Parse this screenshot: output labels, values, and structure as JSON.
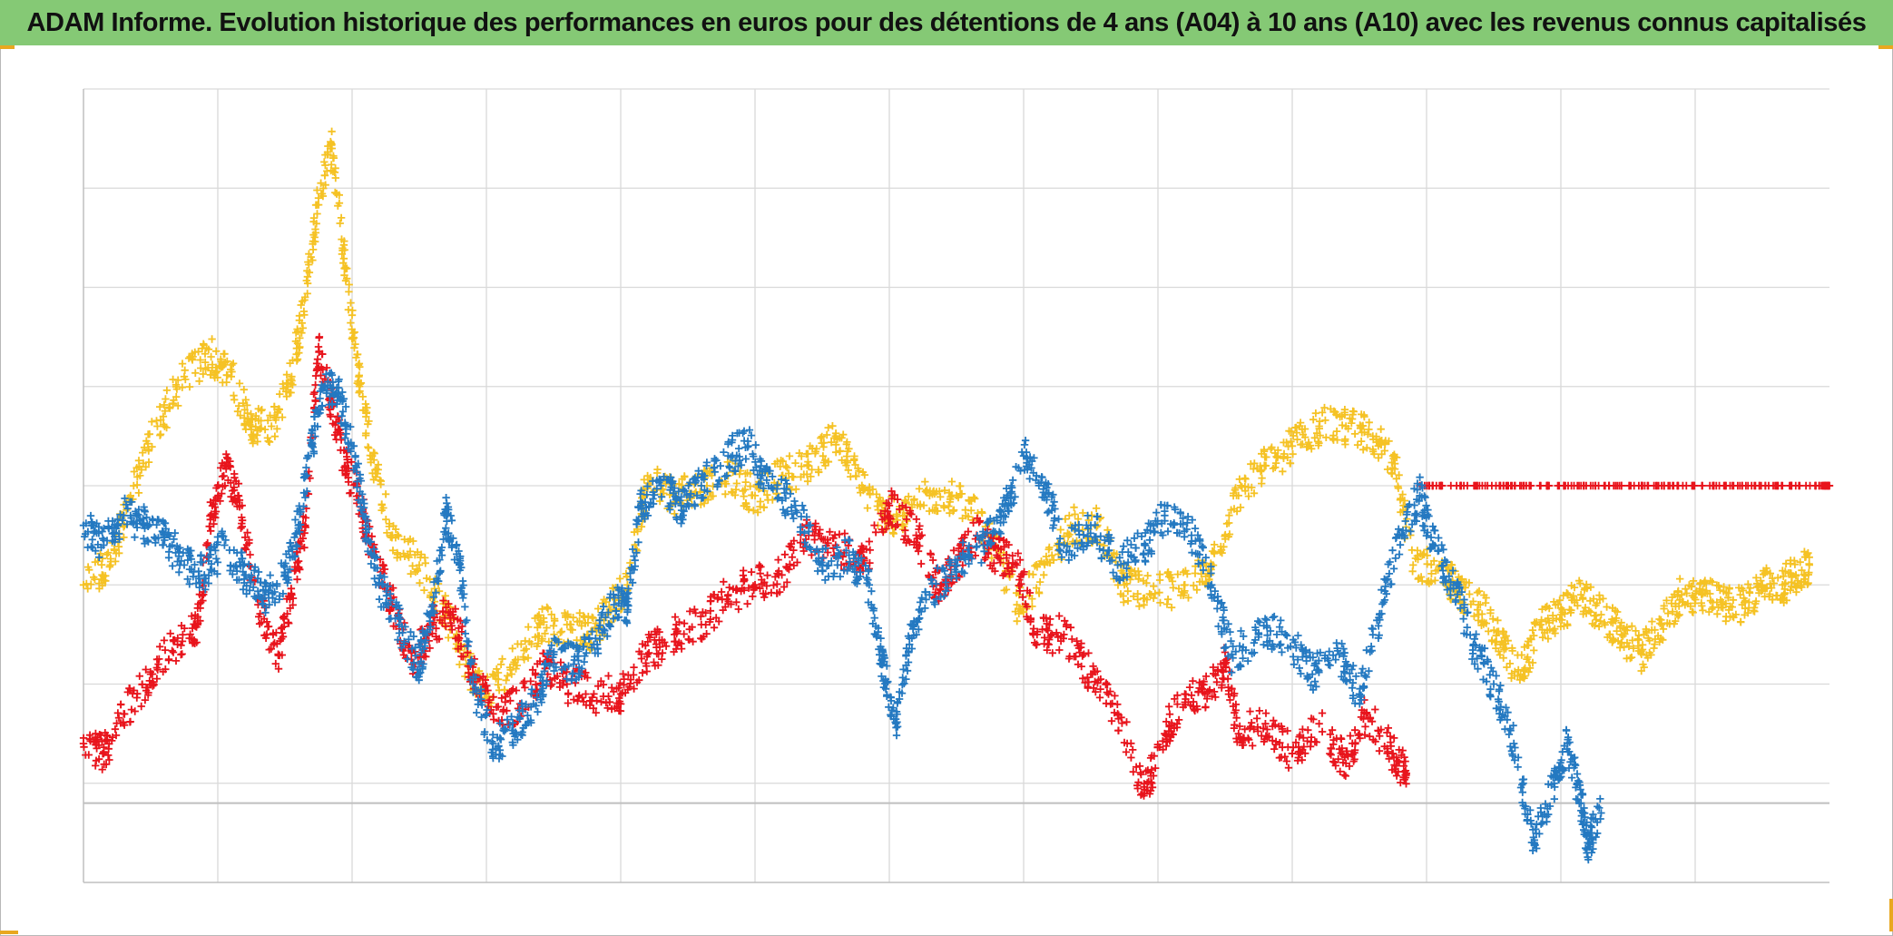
{
  "title": "ADAM Informe. Evolution historique des performances en euros pour des détentions de 4 ans (A04) à 10 ans (A10) avec les revenus connus capitalisés",
  "colors": {
    "title_bar": "#85c975",
    "grid": "#d9d9d9",
    "axis": "#bfbfbf",
    "accent_corner": "#e8a820"
  },
  "chart_data": {
    "type": "scatter",
    "marker": "plus",
    "title": "ADAM Informe. Evolution historique des performances en euros pour des détentions de 4 ans (A04) à 10 ans (A10) avec les revenus connus capitalisés",
    "xlabel": "",
    "ylabel": "",
    "xlim": [
      0,
      13
    ],
    "ylim": [
      -1,
      7
    ],
    "x_gridlines": 13,
    "y_gridlines": [
      -0.2,
      0,
      1,
      2,
      3,
      4,
      5,
      6,
      7
    ],
    "zero_line": -0.2,
    "grid": true,
    "legend": "none",
    "tick_labels_visible": false,
    "series": [
      {
        "color": "#f5c224",
        "points": [
          [
            0,
            2.0
          ],
          [
            0.2,
            2.2
          ],
          [
            0.35,
            2.9
          ],
          [
            0.55,
            3.6
          ],
          [
            0.75,
            4.1
          ],
          [
            0.95,
            4.3
          ],
          [
            1.1,
            4.1
          ],
          [
            1.25,
            3.6
          ],
          [
            1.4,
            3.6
          ],
          [
            1.55,
            4.1
          ],
          [
            1.65,
            4.9
          ],
          [
            1.75,
            5.9
          ],
          [
            1.85,
            6.4
          ],
          [
            1.95,
            5.2
          ],
          [
            2.05,
            4.1
          ],
          [
            2.15,
            3.3
          ],
          [
            2.3,
            2.5
          ],
          [
            2.5,
            2.2
          ],
          [
            2.7,
            1.7
          ],
          [
            2.85,
            1.2
          ],
          [
            3.0,
            0.9
          ],
          [
            3.2,
            1.2
          ],
          [
            3.4,
            1.6
          ],
          [
            3.6,
            1.6
          ],
          [
            3.75,
            1.5
          ],
          [
            3.9,
            1.7
          ],
          [
            4.05,
            2.0
          ],
          [
            4.2,
            3.1
          ],
          [
            4.4,
            2.9
          ],
          [
            4.6,
            3.0
          ],
          [
            4.8,
            3.1
          ],
          [
            5.0,
            2.9
          ],
          [
            5.2,
            3.1
          ],
          [
            5.4,
            3.2
          ],
          [
            5.6,
            3.5
          ],
          [
            5.75,
            3.1
          ],
          [
            5.95,
            2.7
          ],
          [
            6.1,
            2.7
          ],
          [
            6.3,
            2.9
          ],
          [
            6.5,
            2.9
          ],
          [
            6.75,
            2.5
          ],
          [
            6.95,
            1.8
          ],
          [
            7.15,
            2.1
          ],
          [
            7.35,
            2.6
          ],
          [
            7.55,
            2.6
          ],
          [
            7.75,
            2.0
          ],
          [
            7.95,
            1.9
          ],
          [
            8.2,
            2.0
          ],
          [
            8.4,
            2.2
          ],
          [
            8.6,
            2.9
          ],
          [
            8.8,
            3.2
          ],
          [
            9.0,
            3.4
          ],
          [
            9.2,
            3.6
          ],
          [
            9.4,
            3.6
          ],
          [
            9.6,
            3.5
          ],
          [
            9.75,
            3.3
          ],
          [
            9.9,
            2.2
          ],
          [
            10.1,
            2.2
          ],
          [
            10.25,
            1.9
          ],
          [
            10.4,
            1.8
          ],
          [
            10.55,
            1.4
          ],
          [
            10.7,
            1.1
          ],
          [
            10.85,
            1.6
          ],
          [
            11.0,
            1.7
          ],
          [
            11.15,
            1.9
          ],
          [
            11.3,
            1.7
          ],
          [
            11.45,
            1.5
          ],
          [
            11.6,
            1.3
          ],
          [
            11.75,
            1.6
          ],
          [
            11.9,
            1.9
          ],
          [
            12.05,
            1.9
          ],
          [
            12.2,
            1.8
          ],
          [
            12.35,
            1.8
          ],
          [
            12.5,
            2.0
          ],
          [
            12.65,
            2.0
          ],
          [
            12.75,
            2.1
          ],
          [
            12.85,
            2.2
          ]
        ]
      },
      {
        "color": "#e8141c",
        "points": [
          [
            0,
            0.4
          ],
          [
            0.15,
            0.3
          ],
          [
            0.3,
            0.7
          ],
          [
            0.5,
            1.1
          ],
          [
            0.7,
            1.4
          ],
          [
            0.85,
            1.6
          ],
          [
            0.95,
            2.7
          ],
          [
            1.05,
            3.2
          ],
          [
            1.15,
            2.9
          ],
          [
            1.3,
            1.8
          ],
          [
            1.45,
            1.3
          ],
          [
            1.55,
            1.9
          ],
          [
            1.65,
            2.6
          ],
          [
            1.75,
            4.4
          ],
          [
            1.85,
            3.8
          ],
          [
            1.95,
            3.2
          ],
          [
            2.05,
            2.9
          ],
          [
            2.15,
            2.3
          ],
          [
            2.3,
            1.8
          ],
          [
            2.45,
            1.2
          ],
          [
            2.6,
            1.6
          ],
          [
            2.75,
            1.7
          ],
          [
            2.9,
            1.1
          ],
          [
            3.05,
            0.7
          ],
          [
            3.25,
            0.8
          ],
          [
            3.45,
            1.2
          ],
          [
            3.6,
            1.0
          ],
          [
            3.8,
            0.9
          ],
          [
            4.0,
            0.9
          ],
          [
            4.2,
            1.3
          ],
          [
            4.4,
            1.5
          ],
          [
            4.6,
            1.6
          ],
          [
            4.8,
            1.9
          ],
          [
            5.0,
            2.0
          ],
          [
            5.2,
            2.1
          ],
          [
            5.4,
            2.5
          ],
          [
            5.6,
            2.4
          ],
          [
            5.8,
            2.2
          ],
          [
            6.0,
            2.8
          ],
          [
            6.2,
            2.5
          ],
          [
            6.35,
            2.0
          ],
          [
            6.5,
            2.2
          ],
          [
            6.65,
            2.5
          ],
          [
            6.8,
            2.3
          ],
          [
            6.95,
            2.2
          ],
          [
            7.1,
            1.5
          ],
          [
            7.3,
            1.5
          ],
          [
            7.5,
            1.1
          ],
          [
            7.7,
            0.7
          ],
          [
            7.9,
            -0.1
          ],
          [
            8.05,
            0.5
          ],
          [
            8.2,
            0.9
          ],
          [
            8.35,
            0.9
          ],
          [
            8.5,
            1.2
          ],
          [
            8.6,
            0.5
          ],
          [
            8.8,
            0.6
          ],
          [
            9.0,
            0.3
          ],
          [
            9.2,
            0.6
          ],
          [
            9.4,
            0.2
          ],
          [
            9.55,
            0.7
          ],
          [
            9.75,
            0.3
          ],
          [
            9.85,
            0.1
          ]
        ]
      },
      {
        "color": "#e8141c",
        "points": [
          [
            9.95,
            3.0
          ],
          [
            10.25,
            3.0
          ],
          [
            10.55,
            3.0
          ],
          [
            10.85,
            3.0
          ],
          [
            11.15,
            3.0
          ],
          [
            11.45,
            3.0
          ],
          [
            11.75,
            3.0
          ],
          [
            12.05,
            3.0
          ],
          [
            12.35,
            3.0
          ],
          [
            12.65,
            3.0
          ],
          [
            12.95,
            3.0
          ],
          [
            13.0,
            3.0
          ]
        ]
      },
      {
        "color": "#2479c1",
        "points": [
          [
            0,
            2.6
          ],
          [
            0.15,
            2.4
          ],
          [
            0.3,
            2.7
          ],
          [
            0.45,
            2.6
          ],
          [
            0.6,
            2.5
          ],
          [
            0.75,
            2.2
          ],
          [
            0.9,
            2.1
          ],
          [
            1.05,
            2.4
          ],
          [
            1.2,
            2.1
          ],
          [
            1.35,
            1.9
          ],
          [
            1.5,
            2.1
          ],
          [
            1.6,
            2.6
          ],
          [
            1.7,
            3.4
          ],
          [
            1.8,
            4.0
          ],
          [
            1.9,
            3.9
          ],
          [
            2.0,
            3.4
          ],
          [
            2.1,
            2.6
          ],
          [
            2.2,
            2.0
          ],
          [
            2.35,
            1.6
          ],
          [
            2.5,
            1.2
          ],
          [
            2.6,
            1.8
          ],
          [
            2.7,
            2.7
          ],
          [
            2.8,
            2.2
          ],
          [
            2.9,
            1.0
          ],
          [
            3.05,
            0.4
          ],
          [
            3.2,
            0.5
          ],
          [
            3.35,
            0.8
          ],
          [
            3.5,
            1.3
          ],
          [
            3.65,
            1.2
          ],
          [
            3.8,
            1.4
          ],
          [
            3.95,
            1.8
          ],
          [
            4.05,
            1.8
          ],
          [
            4.15,
            2.8
          ],
          [
            4.3,
            3.0
          ],
          [
            4.45,
            2.8
          ],
          [
            4.6,
            3.0
          ],
          [
            4.8,
            3.3
          ],
          [
            4.95,
            3.4
          ],
          [
            5.1,
            3.0
          ],
          [
            5.3,
            2.8
          ],
          [
            5.5,
            2.2
          ],
          [
            5.7,
            2.3
          ],
          [
            5.85,
            2.0
          ],
          [
            5.95,
            1.2
          ],
          [
            6.05,
            0.6
          ],
          [
            6.15,
            1.4
          ],
          [
            6.3,
            1.9
          ],
          [
            6.5,
            2.2
          ],
          [
            6.7,
            2.4
          ],
          [
            6.85,
            2.7
          ],
          [
            7.0,
            3.3
          ],
          [
            7.15,
            3.0
          ],
          [
            7.3,
            2.4
          ],
          [
            7.5,
            2.6
          ],
          [
            7.7,
            2.2
          ],
          [
            7.9,
            2.4
          ],
          [
            8.05,
            2.7
          ],
          [
            8.25,
            2.5
          ],
          [
            8.4,
            2.0
          ],
          [
            8.55,
            1.3
          ],
          [
            8.75,
            1.5
          ],
          [
            8.95,
            1.5
          ],
          [
            9.15,
            1.1
          ],
          [
            9.35,
            1.3
          ],
          [
            9.5,
            0.9
          ],
          [
            9.65,
            1.7
          ],
          [
            9.8,
            2.5
          ],
          [
            9.95,
            2.9
          ],
          [
            10.05,
            2.4
          ],
          [
            10.2,
            2.0
          ],
          [
            10.35,
            1.4
          ],
          [
            10.5,
            1.0
          ],
          [
            10.65,
            0.4
          ],
          [
            10.8,
            -0.6
          ],
          [
            10.95,
            0.0
          ],
          [
            11.05,
            0.4
          ],
          [
            11.15,
            -0.2
          ],
          [
            11.2,
            -0.6
          ],
          [
            11.3,
            -0.3
          ]
        ]
      }
    ]
  }
}
